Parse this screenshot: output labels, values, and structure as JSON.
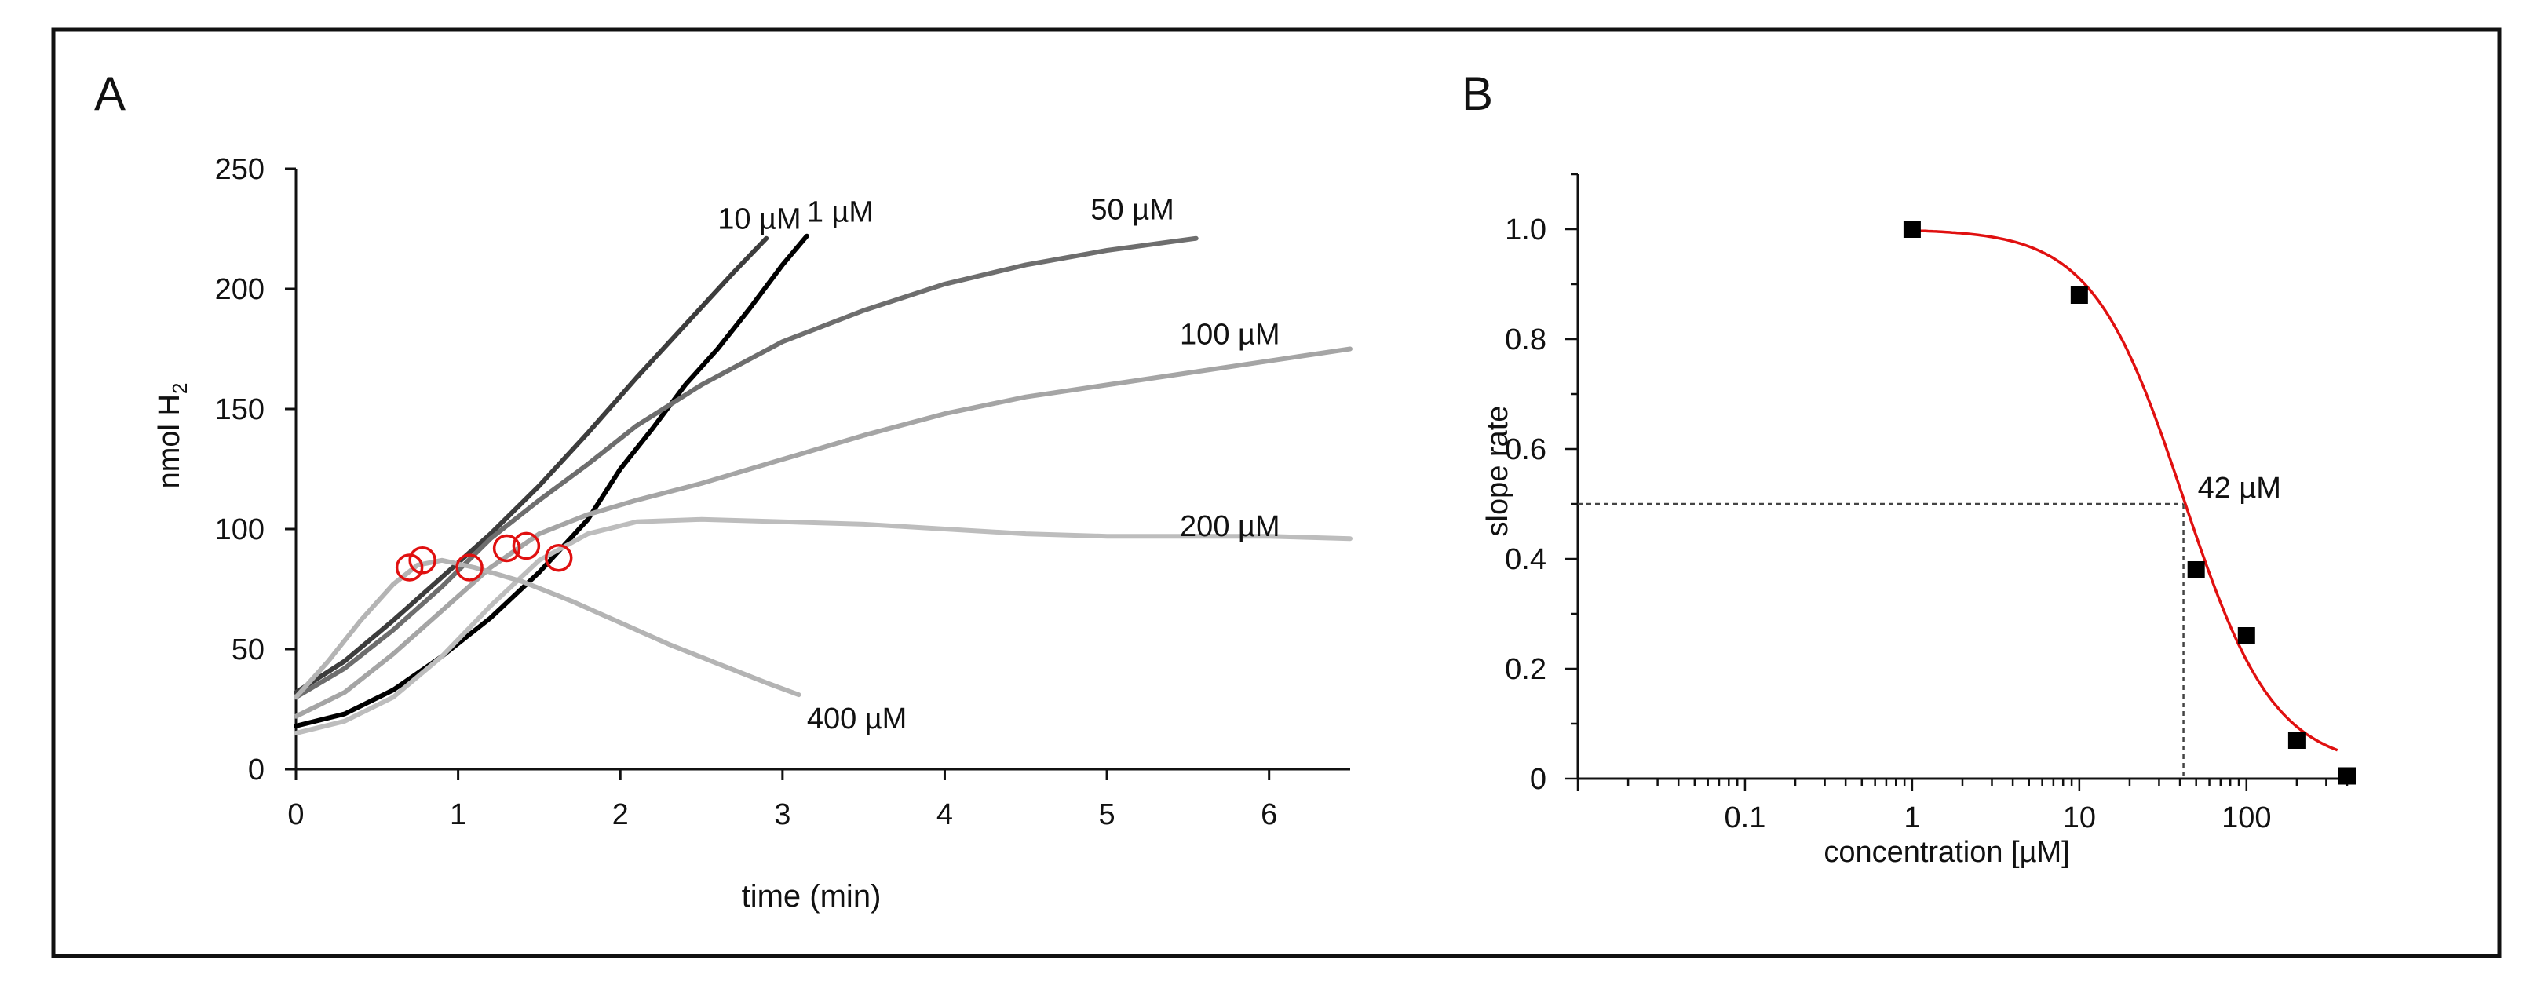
{
  "chart_data": [
    {
      "panel": "A",
      "type": "line",
      "title": "",
      "xlabel": "time (min)",
      "ylabel_main": "nmol H",
      "ylabel_sub": "2",
      "xlim": [
        0,
        6.5
      ],
      "ylim": [
        0,
        250
      ],
      "xticks": [
        0,
        1,
        2,
        3,
        4,
        5,
        6
      ],
      "yticks": [
        0,
        50,
        100,
        150,
        200,
        250
      ],
      "series": [
        {
          "name": "10 µM",
          "color": "#3d3d3d",
          "label_x": 2.6,
          "label_y": 225,
          "x": [
            0,
            0.3,
            0.6,
            0.9,
            1.2,
            1.5,
            1.8,
            2.1,
            2.4,
            2.7,
            2.9
          ],
          "y": [
            32,
            45,
            62,
            80,
            98,
            118,
            140,
            163,
            185,
            207,
            221
          ]
        },
        {
          "name": "1 µM",
          "color": "#000000",
          "label_x": 3.15,
          "label_y": 228,
          "x": [
            0,
            0.3,
            0.6,
            0.9,
            1.2,
            1.5,
            1.8,
            2.0,
            2.2,
            2.4,
            2.6,
            2.8,
            3.0,
            3.15
          ],
          "y": [
            18,
            23,
            33,
            47,
            63,
            82,
            104,
            125,
            142,
            160,
            175,
            192,
            210,
            222
          ]
        },
        {
          "name": "50 µM",
          "color": "#6e6e6e",
          "label_x": 4.9,
          "label_y": 229,
          "x": [
            0,
            0.3,
            0.6,
            0.9,
            1.2,
            1.5,
            1.8,
            2.1,
            2.5,
            3.0,
            3.5,
            4.0,
            4.5,
            5.0,
            5.55
          ],
          "y": [
            30,
            42,
            58,
            76,
            96,
            112,
            127,
            143,
            160,
            178,
            191,
            202,
            210,
            216,
            221
          ]
        },
        {
          "name": "100 µM",
          "color": "#a5a5a5",
          "label_x": 5.45,
          "label_y": 177,
          "x": [
            0,
            0.3,
            0.6,
            0.9,
            1.2,
            1.5,
            1.8,
            2.1,
            2.5,
            3.0,
            3.5,
            4.0,
            4.5,
            5.0,
            5.5,
            6.0,
            6.5
          ],
          "y": [
            22,
            32,
            48,
            66,
            84,
            98,
            106,
            112,
            119,
            129,
            139,
            148,
            155,
            160,
            165,
            170,
            175
          ]
        },
        {
          "name": "200 µM",
          "color": "#bdbdbd",
          "label_x": 5.45,
          "label_y": 97,
          "x": [
            0,
            0.3,
            0.6,
            0.9,
            1.2,
            1.5,
            1.8,
            2.1,
            2.5,
            3.0,
            3.5,
            4.0,
            4.5,
            5.0,
            5.5,
            6.0,
            6.5
          ],
          "y": [
            15,
            20,
            30,
            47,
            68,
            87,
            98,
            103,
            104,
            103,
            102,
            100,
            98,
            97,
            97,
            97,
            96
          ]
        },
        {
          "name": "400 µM",
          "color": "#b4b4b4",
          "label_x": 3.15,
          "label_y": 17,
          "x": [
            0,
            0.2,
            0.4,
            0.6,
            0.75,
            0.9,
            1.1,
            1.4,
            1.7,
            2.0,
            2.3,
            2.6,
            2.9,
            3.1
          ],
          "y": [
            30,
            45,
            62,
            77,
            85,
            87,
            84,
            78,
            70,
            61,
            52,
            44,
            36,
            31
          ]
        }
      ],
      "markers": [
        {
          "x": 0.7,
          "y": 84
        },
        {
          "x": 0.78,
          "y": 87
        },
        {
          "x": 1.07,
          "y": 84
        },
        {
          "x": 1.3,
          "y": 92
        },
        {
          "x": 1.42,
          "y": 93
        },
        {
          "x": 1.62,
          "y": 88
        }
      ],
      "marker_color": "#e01010"
    },
    {
      "panel": "B",
      "type": "scatter",
      "title": "",
      "xlabel": "concentration [µM]",
      "ylabel": "slope rate",
      "xscale": "log",
      "xlim": [
        0.01,
        400
      ],
      "ylim": [
        0,
        1.1
      ],
      "xticks": [
        0.1,
        1,
        10,
        100
      ],
      "xtick_labels": [
        "0.1",
        "1",
        "10",
        "100"
      ],
      "yticks": [
        0,
        0.2,
        0.4,
        0.6,
        0.8,
        1.0
      ],
      "ytick_labels": [
        "0",
        "0.2",
        "0.4",
        "0.6",
        "0.8",
        "1.0"
      ],
      "points": {
        "x": [
          1,
          10,
          50,
          100,
          200,
          400
        ],
        "y": [
          1.0,
          0.88,
          0.38,
          0.26,
          0.07,
          0.005
        ]
      },
      "fit": {
        "ic50": 42,
        "hill": 1.6,
        "x_start": 1,
        "x_end": 350,
        "color": "#e01010"
      },
      "ic50_marker": {
        "x": 42,
        "y": 0.5
      },
      "annotation": "42 µM",
      "point_color": "#000000"
    }
  ],
  "panel_labels": {
    "a": "A",
    "b": "B"
  }
}
